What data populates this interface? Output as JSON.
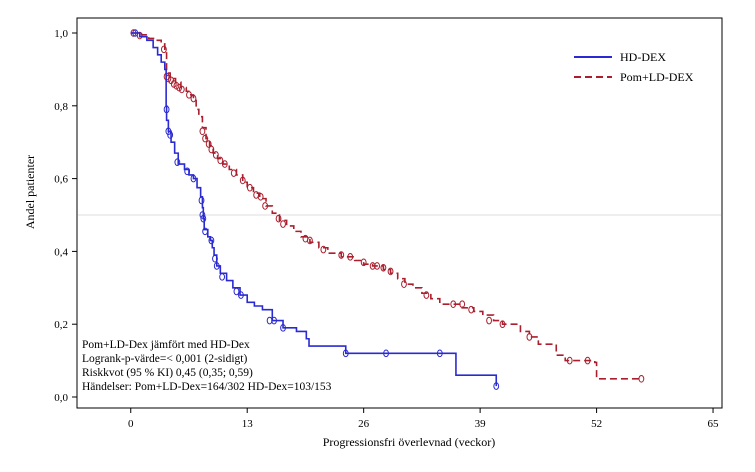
{
  "chart_data": {
    "type": "line",
    "subtype": "kaplan-meier",
    "xlabel": "Progressionsfri överlevnad (veckor)",
    "ylabel": "Andel patienter",
    "xlim": [
      -6,
      66
    ],
    "ylim": [
      0,
      1.0
    ],
    "x_ticks": [
      0,
      13,
      26,
      39,
      52,
      65
    ],
    "x_tick_labels": [
      "0",
      "13",
      "26",
      "39",
      "52",
      "65"
    ],
    "y_ticks": [
      0,
      0.2,
      0.4,
      0.6,
      0.8,
      1.0
    ],
    "y_tick_labels": [
      "0,0",
      "0,2",
      "0,4",
      "0,6",
      "0,8",
      "1,0"
    ],
    "reference_line_y": 0.5,
    "grid": false,
    "legend_position": "top-right",
    "series": [
      {
        "name": "HD-DEX",
        "color": "#2a2ad2",
        "dash": "solid",
        "points": [
          [
            0,
            1.0
          ],
          [
            1.0,
            0.99
          ],
          [
            1.8,
            0.98
          ],
          [
            2.5,
            0.96
          ],
          [
            3.0,
            0.94
          ],
          [
            3.4,
            0.92
          ],
          [
            3.8,
            0.9
          ],
          [
            3.95,
            0.8
          ],
          [
            4.0,
            0.76
          ],
          [
            4.2,
            0.73
          ],
          [
            4.5,
            0.7
          ],
          [
            4.9,
            0.67
          ],
          [
            5.3,
            0.64
          ],
          [
            6.0,
            0.625
          ],
          [
            6.5,
            0.61
          ],
          [
            7.0,
            0.6
          ],
          [
            7.4,
            0.575
          ],
          [
            7.8,
            0.55
          ],
          [
            8.0,
            0.52
          ],
          [
            8.1,
            0.49
          ],
          [
            8.2,
            0.46
          ],
          [
            8.6,
            0.44
          ],
          [
            8.9,
            0.43
          ],
          [
            9.1,
            0.41
          ],
          [
            9.3,
            0.39
          ],
          [
            9.6,
            0.36
          ],
          [
            10.0,
            0.34
          ],
          [
            10.7,
            0.32
          ],
          [
            11.4,
            0.3
          ],
          [
            12.2,
            0.28
          ],
          [
            13.0,
            0.26
          ],
          [
            13.8,
            0.25
          ],
          [
            14.7,
            0.24
          ],
          [
            15.8,
            0.21
          ],
          [
            17.0,
            0.19
          ],
          [
            18.5,
            0.18
          ],
          [
            19.6,
            0.16
          ],
          [
            19.9,
            0.14
          ],
          [
            20.2,
            0.14
          ],
          [
            24.0,
            0.12
          ],
          [
            36.2,
            0.12
          ],
          [
            36.3,
            0.06
          ],
          [
            40.7,
            0.06
          ],
          [
            40.8,
            0.03
          ]
        ],
        "censored": [
          [
            0.5,
            1.0
          ],
          [
            4.0,
            0.79
          ],
          [
            4.2,
            0.73
          ],
          [
            4.4,
            0.72
          ],
          [
            5.2,
            0.645
          ],
          [
            6.3,
            0.62
          ],
          [
            7.0,
            0.6
          ],
          [
            7.9,
            0.54
          ],
          [
            8.0,
            0.5
          ],
          [
            8.1,
            0.49
          ],
          [
            8.3,
            0.455
          ],
          [
            9.0,
            0.43
          ],
          [
            9.4,
            0.38
          ],
          [
            9.6,
            0.36
          ],
          [
            10.2,
            0.33
          ],
          [
            11.8,
            0.29
          ],
          [
            12.3,
            0.28
          ],
          [
            15.5,
            0.21
          ],
          [
            16.0,
            0.21
          ],
          [
            17.0,
            0.19
          ],
          [
            24.0,
            0.12
          ],
          [
            28.5,
            0.12
          ],
          [
            34.5,
            0.12
          ],
          [
            40.8,
            0.03
          ]
        ]
      },
      {
        "name": "Pom+LD-DEX",
        "color": "#aa1e2d",
        "dash": "dashed",
        "points": [
          [
            0,
            1.0
          ],
          [
            1.2,
            0.995
          ],
          [
            2.0,
            0.985
          ],
          [
            2.8,
            0.98
          ],
          [
            3.4,
            0.97
          ],
          [
            3.8,
            0.95
          ],
          [
            4.0,
            0.89
          ],
          [
            4.4,
            0.875
          ],
          [
            5.0,
            0.865
          ],
          [
            5.6,
            0.85
          ],
          [
            6.2,
            0.84
          ],
          [
            6.7,
            0.83
          ],
          [
            7.0,
            0.82
          ],
          [
            7.3,
            0.79
          ],
          [
            7.6,
            0.77
          ],
          [
            8.0,
            0.74
          ],
          [
            8.4,
            0.71
          ],
          [
            8.8,
            0.69
          ],
          [
            9.2,
            0.67
          ],
          [
            9.7,
            0.655
          ],
          [
            10.3,
            0.64
          ],
          [
            11.0,
            0.625
          ],
          [
            11.8,
            0.61
          ],
          [
            12.5,
            0.59
          ],
          [
            13.0,
            0.575
          ],
          [
            13.7,
            0.56
          ],
          [
            14.4,
            0.545
          ],
          [
            15.1,
            0.525
          ],
          [
            15.8,
            0.505
          ],
          [
            16.6,
            0.485
          ],
          [
            17.4,
            0.47
          ],
          [
            18.2,
            0.455
          ],
          [
            19.0,
            0.44
          ],
          [
            20.0,
            0.425
          ],
          [
            21.0,
            0.41
          ],
          [
            22.0,
            0.395
          ],
          [
            23.5,
            0.385
          ],
          [
            25.0,
            0.375
          ],
          [
            26.0,
            0.365
          ],
          [
            27.0,
            0.36
          ],
          [
            28.2,
            0.35
          ],
          [
            29.0,
            0.34
          ],
          [
            29.8,
            0.325
          ],
          [
            30.6,
            0.31
          ],
          [
            31.5,
            0.3
          ],
          [
            32.5,
            0.285
          ],
          [
            33.5,
            0.27
          ],
          [
            34.5,
            0.255
          ],
          [
            37.0,
            0.245
          ],
          [
            38.3,
            0.235
          ],
          [
            39.3,
            0.225
          ],
          [
            40.5,
            0.21
          ],
          [
            41.5,
            0.2
          ],
          [
            43.5,
            0.18
          ],
          [
            44.5,
            0.165
          ],
          [
            45.5,
            0.145
          ],
          [
            47.5,
            0.115
          ],
          [
            48.5,
            0.1
          ],
          [
            51.8,
            0.095
          ],
          [
            52.0,
            0.05
          ],
          [
            57.0,
            0.05
          ]
        ],
        "censored": [
          [
            0.3,
            1.0
          ],
          [
            1.0,
            0.993
          ],
          [
            3.7,
            0.955
          ],
          [
            4.0,
            0.88
          ],
          [
            4.2,
            0.875
          ],
          [
            4.5,
            0.87
          ],
          [
            4.8,
            0.86
          ],
          [
            5.1,
            0.855
          ],
          [
            5.4,
            0.85
          ],
          [
            5.7,
            0.845
          ],
          [
            6.5,
            0.83
          ],
          [
            7.0,
            0.82
          ],
          [
            8.0,
            0.73
          ],
          [
            8.3,
            0.71
          ],
          [
            8.7,
            0.695
          ],
          [
            9.0,
            0.68
          ],
          [
            9.5,
            0.665
          ],
          [
            10.0,
            0.65
          ],
          [
            10.5,
            0.64
          ],
          [
            11.5,
            0.615
          ],
          [
            12.5,
            0.595
          ],
          [
            13.3,
            0.575
          ],
          [
            14.0,
            0.555
          ],
          [
            14.5,
            0.55
          ],
          [
            15.0,
            0.525
          ],
          [
            16.5,
            0.49
          ],
          [
            17.0,
            0.475
          ],
          [
            19.5,
            0.435
          ],
          [
            20.0,
            0.43
          ],
          [
            21.5,
            0.405
          ],
          [
            23.5,
            0.39
          ],
          [
            24.5,
            0.385
          ],
          [
            26.0,
            0.37
          ],
          [
            27.0,
            0.36
          ],
          [
            27.5,
            0.36
          ],
          [
            28.2,
            0.355
          ],
          [
            29.0,
            0.345
          ],
          [
            30.5,
            0.31
          ],
          [
            33.0,
            0.28
          ],
          [
            36.0,
            0.255
          ],
          [
            37.0,
            0.255
          ],
          [
            38.0,
            0.24
          ],
          [
            40.0,
            0.21
          ],
          [
            41.5,
            0.2
          ],
          [
            44.5,
            0.165
          ],
          [
            49.0,
            0.1
          ],
          [
            51.0,
            0.1
          ],
          [
            57.0,
            0.05
          ]
        ]
      }
    ],
    "annotations": [
      "Pom+LD-Dex jämfört med HD-Dex",
      "Logrank-p-värde=< 0,001 (2-sidigt)",
      "Riskkvot (95 % KI) 0,45 (0,35; 0,59)",
      "Händelser: Pom+LD-Dex=164/302 HD-Dex=103/153"
    ]
  }
}
